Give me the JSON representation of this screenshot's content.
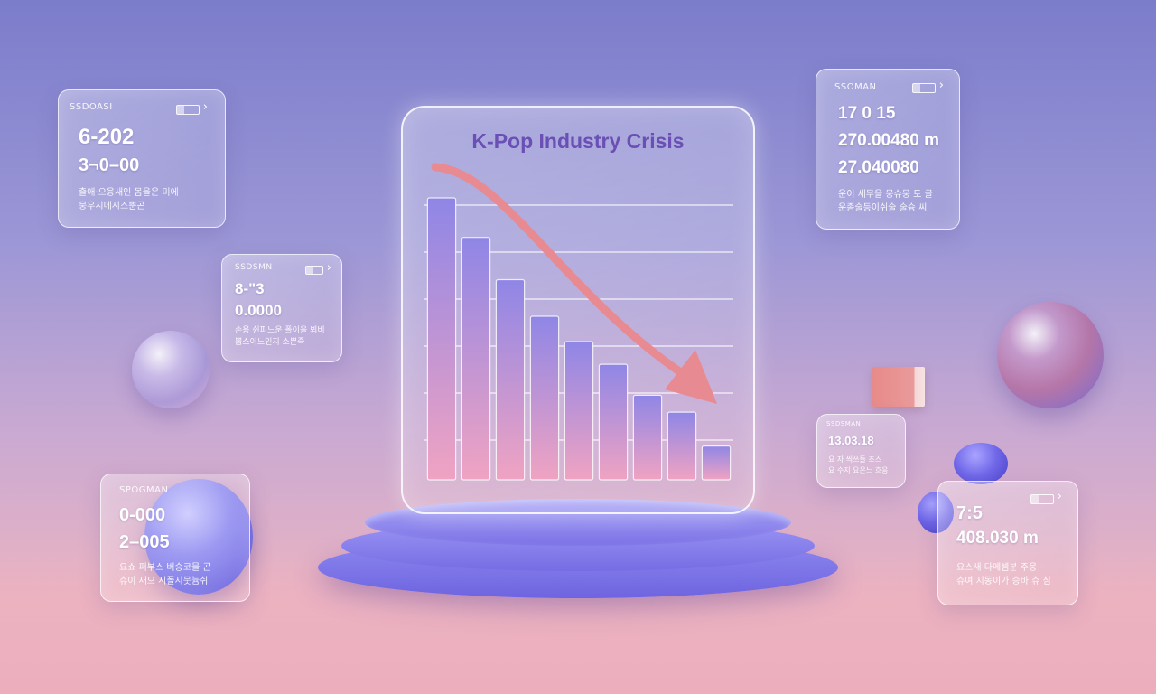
{
  "colors": {
    "accent": "#7b6fe0",
    "arrow": "#e88a92",
    "bar_gradient_top": "#8f86e6",
    "bar_gradient_bottom": "#f0a3c2",
    "title": "#6a4fb4"
  },
  "chart_data": {
    "type": "bar",
    "title": "K-Pop Industry Crisis",
    "xlabel": "",
    "ylabel": "",
    "categories": [
      "",
      "",
      "",
      "",
      "",
      "",
      "",
      "",
      ""
    ],
    "values": [
      100,
      86,
      71,
      58,
      49,
      41,
      30,
      24,
      12
    ],
    "ylim": [
      0,
      100
    ],
    "grid": true,
    "trend_arrow": "down"
  },
  "cards": {
    "top_left": {
      "label": "SSDOASI",
      "line1": "6-202",
      "line2": "3¬0–00",
      "caption1": "출애·으융새인 몸울은 미에",
      "caption2": "뭉우시메시스뿐곤"
    },
    "mid_left": {
      "label": "SSDSMN",
      "line1": "8-\"3",
      "line2": "0.0000",
      "caption1": "손용 쉰피느운 폴이을 뵈비",
      "caption2": "뽑스이느인지 소쁜즉"
    },
    "bottom_left": {
      "label": "SPOGMAN",
      "line1": "0-000",
      "line2": "2–005",
      "caption1": "요쇼 퍼부스 버승코물 곤",
      "caption2": "슈이 새으 시폴시뭇늄쉬"
    },
    "top_right": {
      "label": "SSOMAN",
      "line1": "17 0 15",
      "line2": "270.00480 m",
      "line3": "27.040080",
      "caption1": "운이 세무을 뭉슈뭉 토 글",
      "caption2": "운좀술등이쉬술 술슝 씨"
    },
    "mid_right": {
      "label": "SSDSMAN",
      "line1": "13.03.18",
      "caption1": "요 자 씌쓰들 조스",
      "caption2": "요 수지 요은느 흐응"
    },
    "bottom_right": {
      "label": "",
      "line1": "7:5",
      "line2": "408.030 m",
      "caption1": "요스새 다메셈분 주웅",
      "caption2": "슈여 지동이가 승바 슈 심"
    }
  }
}
